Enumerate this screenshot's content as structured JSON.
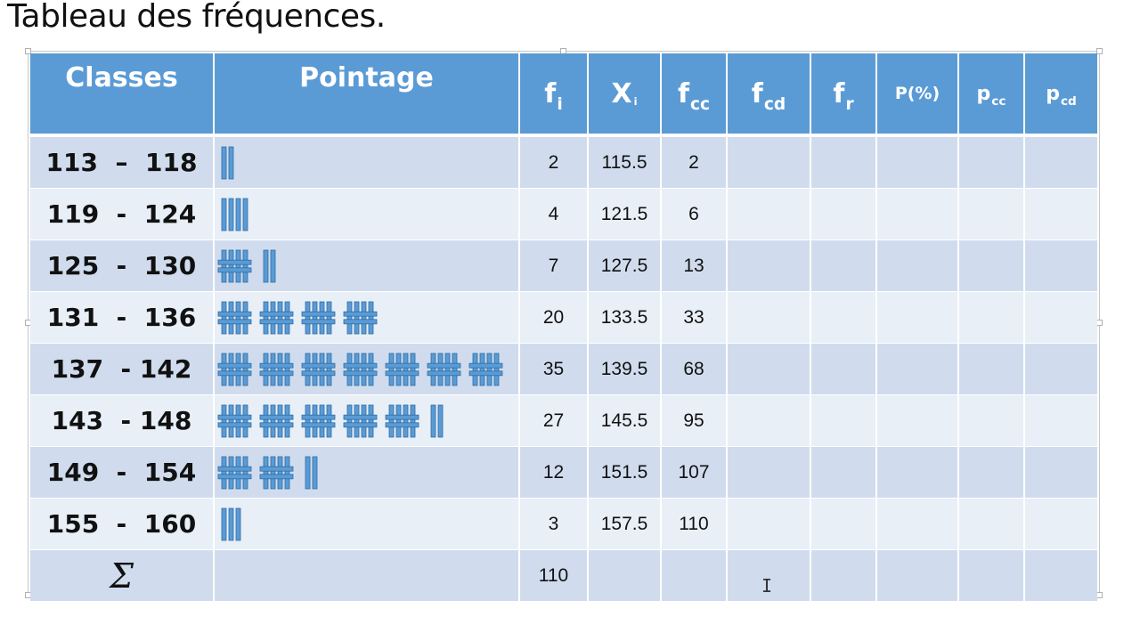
{
  "title": "Tableau des fréquences.",
  "headers": {
    "classes": "Classes",
    "pointage": "Pointage",
    "fi": {
      "main": "f",
      "sub": "i"
    },
    "xi": {
      "main": "X",
      "sub": "i"
    },
    "fcc": {
      "main": "f",
      "sub": "cc"
    },
    "fcd": {
      "main": "f",
      "sub": "cd"
    },
    "fr": {
      "main": "f",
      "sub": "r"
    },
    "p": "P(%)",
    "pcc": {
      "main": "p",
      "sub": "cc"
    },
    "pcd": {
      "main": "p",
      "sub": "cd"
    }
  },
  "colors": {
    "header_bg": "#5b9bd5",
    "row_dark": "#d0dcee",
    "row_light": "#e9eff7",
    "tally_fill": "#5b9bd5",
    "tally_stroke": "#2e6da4"
  },
  "rows": [
    {
      "classe": "113  –  118",
      "tally": 2,
      "fi": "2",
      "xi": "115.5",
      "fcc": "2"
    },
    {
      "classe": "119  -  124",
      "tally": 4,
      "fi": "4",
      "xi": "121.5",
      "fcc": "6"
    },
    {
      "classe": "125  -  130",
      "tally": 7,
      "fi": "7",
      "xi": "127.5",
      "fcc": "13"
    },
    {
      "classe": "131  -  136",
      "tally": 20,
      "fi": "20",
      "xi": "133.5",
      "fcc": "33"
    },
    {
      "classe": "137  - 142",
      "tally": 35,
      "fi": "35",
      "xi": "139.5",
      "fcc": "68"
    },
    {
      "classe": "143  - 148",
      "tally": 27,
      "fi": "27",
      "xi": "145.5",
      "fcc": "95"
    },
    {
      "classe": "149  -  154",
      "tally": 12,
      "fi": "12",
      "xi": "151.5",
      "fcc": "107"
    },
    {
      "classe": "155  -  160",
      "tally": 3,
      "fi": "3",
      "xi": "157.5",
      "fcc": "110"
    }
  ],
  "total": {
    "symbol": "Σ",
    "fi": "110"
  }
}
